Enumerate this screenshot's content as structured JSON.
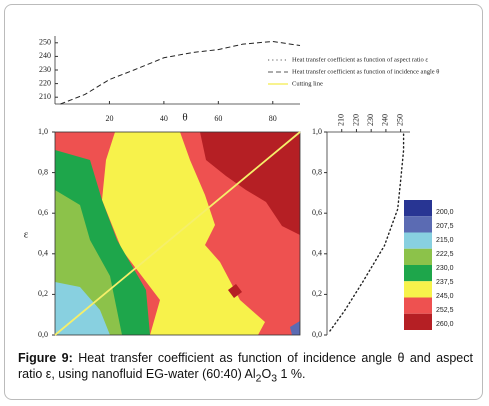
{
  "figure": {
    "caption_label": "Figure 9:",
    "caption_text": "Heat transfer coefficient as function of incidence angle θ and aspect ratio ε, using nanofluid EG-water (60:40)",
    "formula_base": "Al",
    "formula_sub1": "2",
    "formula_mid": "O",
    "formula_sub2": "3",
    "caption_end": "1 %."
  },
  "chart_data": [
    {
      "type": "line",
      "xlabel": "θ",
      "x": [
        2,
        11,
        20,
        29,
        40,
        51,
        60,
        69,
        80,
        90
      ],
      "series": [
        {
          "name": "Heat transfer coefficient as function of incidence angle θ",
          "color": "#222",
          "dash": "dashed",
          "values": [
            205,
            212,
            223,
            230,
            239,
            243,
            245,
            249,
            251,
            248
          ]
        }
      ],
      "xlim": [
        0,
        90
      ],
      "ylim": [
        205,
        255
      ],
      "xticks": [
        20,
        40,
        60,
        80
      ],
      "yticks": [
        210,
        220,
        230,
        240,
        250
      ]
    },
    {
      "type": "contour",
      "ylabel": "ε",
      "xlim": [
        0,
        90
      ],
      "ylim": [
        0,
        1
      ],
      "yticks": [
        {
          "value": 0,
          "label": "0,0"
        },
        {
          "value": 0.2,
          "label": "0,2"
        },
        {
          "value": 0.4,
          "label": "0,4"
        },
        {
          "value": 0.6,
          "label": "0,6"
        },
        {
          "value": 0.8,
          "label": "0,8"
        },
        {
          "value": 1,
          "label": "1,0"
        }
      ],
      "colors": [
        "#283593",
        "#5b6bb3",
        "#88d0e0",
        "#8cc24a",
        "#1ea64b",
        "#f7f24b",
        "#ee5150",
        "#b51f24"
      ],
      "levels": [
        {
          "value": 200,
          "label": "200,0"
        },
        {
          "value": 207.5,
          "label": "207,5"
        },
        {
          "value": 215,
          "label": "215,0"
        },
        {
          "value": 222.5,
          "label": "222,5"
        },
        {
          "value": 230,
          "label": "230,0"
        },
        {
          "value": 237.5,
          "label": "237,5"
        },
        {
          "value": 245,
          "label": "245,0"
        },
        {
          "value": 252.5,
          "label": "252,5"
        },
        {
          "value": 260,
          "label": "260,0"
        }
      ],
      "series": [
        {
          "name": "Cutting line",
          "color": "#f5ef6a",
          "x": [
            0,
            90
          ],
          "values": [
            0,
            1
          ]
        }
      ]
    },
    {
      "type": "line",
      "orientation": "vertical",
      "x": [
        0.02,
        0.12,
        0.27,
        0.44,
        0.62,
        0.76,
        0.91,
        1.0
      ],
      "series": [
        {
          "name": "Heat transfer coefficient as function of aspect ratio ε",
          "color": "#222",
          "dash": "dotted",
          "values": [
            202,
            212,
            225,
            239,
            248,
            250,
            252,
            252
          ]
        }
      ],
      "xlim": [
        0,
        1
      ],
      "ylim": [
        200,
        255
      ],
      "xticks": [
        {
          "value": 0,
          "label": "0,0"
        },
        {
          "value": 0.2,
          "label": "0,2"
        },
        {
          "value": 0.4,
          "label": "0,4"
        },
        {
          "value": 0.6,
          "label": "0,6"
        },
        {
          "value": 0.8,
          "label": "0,8"
        },
        {
          "value": 1,
          "label": "1,0"
        }
      ],
      "yticks": [
        210,
        220,
        230,
        240,
        250
      ]
    }
  ]
}
